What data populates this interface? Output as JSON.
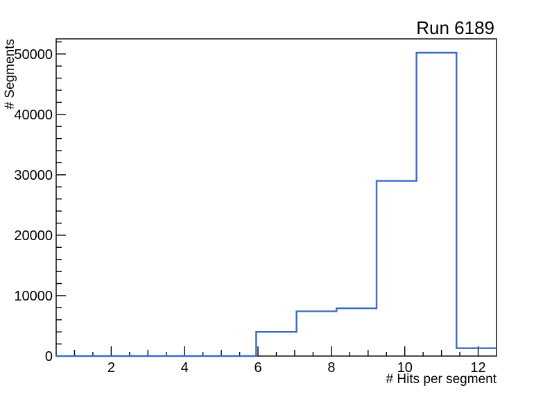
{
  "chart_data": {
    "type": "histogram-step",
    "title": "Run 6189",
    "xlabel": "# Hits per segment",
    "ylabel": "# Segments",
    "xlim": [
      0.5,
      12.5
    ],
    "ylim": [
      0,
      52500
    ],
    "bin_edges": [
      0.5,
      1.59,
      2.68,
      3.77,
      4.86,
      5.95,
      7.05,
      8.14,
      9.23,
      10.32,
      11.41,
      12.5
    ],
    "values": [
      0,
      0,
      0,
      0,
      0,
      4000,
      7400,
      7900,
      29000,
      50200,
      1300
    ],
    "x_major_ticks": [
      2,
      4,
      6,
      8,
      10,
      12
    ],
    "x_medium_ticks": [
      1,
      3,
      5,
      7,
      9,
      11
    ],
    "x_minor_step": 0.5,
    "y_major_ticks": [
      0,
      10000,
      20000,
      30000,
      40000,
      50000
    ],
    "y_minor_step": 2000,
    "grid": false,
    "legend": null,
    "colors": {
      "line": "#3b6bc5",
      "axis": "#000000",
      "background": "#ffffff",
      "text": "#000000"
    }
  }
}
